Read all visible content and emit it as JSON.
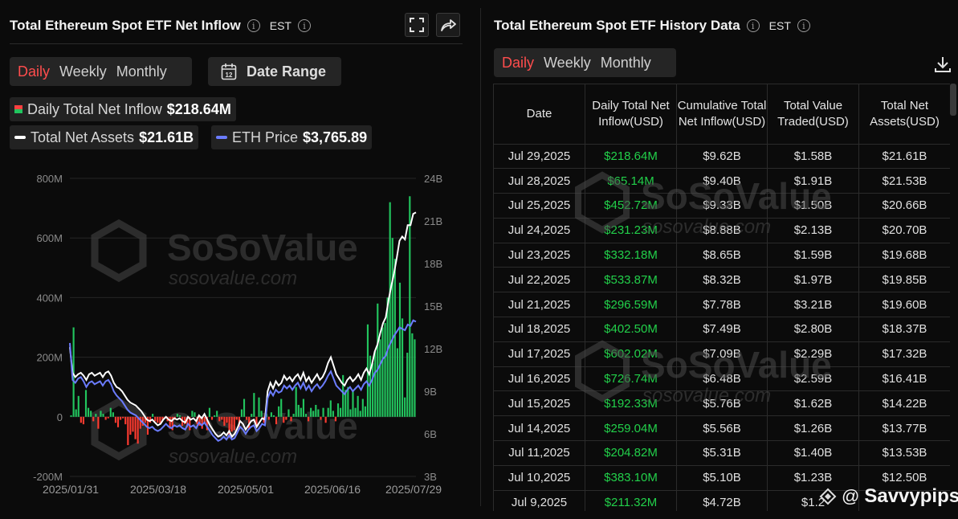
{
  "left_panel": {
    "title": "Total Ethereum Spot ETF Net Inflow",
    "timezone": "EST",
    "tabs": [
      "Daily",
      "Weekly",
      "Monthly"
    ],
    "active_tab": "Daily",
    "date_range_label": "Date Range",
    "legend": {
      "inflow_label": "Daily Total Net Inflow",
      "inflow_value": "$218.64M",
      "assets_label": "Total Net Assets",
      "assets_value": "$21.61B",
      "eth_label": "ETH Price",
      "eth_value": "$3,765.89"
    }
  },
  "right_panel": {
    "title": "Total Ethereum Spot ETF History Data",
    "timezone": "EST",
    "tabs": [
      "Daily",
      "Weekly",
      "Monthly"
    ],
    "active_tab": "Daily",
    "columns": [
      "Date",
      "Daily Total Net Inflow(USD)",
      "Cumulative Total Net Inflow(USD)",
      "Total Value Traded(USD)",
      "Total Net Assets(USD)"
    ],
    "rows": [
      [
        "Jul 29,2025",
        "$218.64M",
        "$9.62B",
        "$1.58B",
        "$21.61B"
      ],
      [
        "Jul 28,2025",
        "$65.14M",
        "$9.40B",
        "$1.91B",
        "$21.53B"
      ],
      [
        "Jul 25,2025",
        "$452.72M",
        "$9.33B",
        "$1.50B",
        "$20.66B"
      ],
      [
        "Jul 24,2025",
        "$231.23M",
        "$8.88B",
        "$2.13B",
        "$20.70B"
      ],
      [
        "Jul 23,2025",
        "$332.18M",
        "$8.65B",
        "$1.59B",
        "$19.68B"
      ],
      [
        "Jul 22,2025",
        "$533.87M",
        "$8.32B",
        "$1.97B",
        "$19.85B"
      ],
      [
        "Jul 21,2025",
        "$296.59M",
        "$7.78B",
        "$3.21B",
        "$19.60B"
      ],
      [
        "Jul 18,2025",
        "$402.50M",
        "$7.49B",
        "$2.80B",
        "$18.37B"
      ],
      [
        "Jul 17,2025",
        "$602.02M",
        "$7.09B",
        "$2.29B",
        "$17.32B"
      ],
      [
        "Jul 16,2025",
        "$726.74M",
        "$6.48B",
        "$2.59B",
        "$16.41B"
      ],
      [
        "Jul 15,2025",
        "$192.33M",
        "$5.76B",
        "$1.62B",
        "$14.22B"
      ],
      [
        "Jul 14,2025",
        "$259.04M",
        "$5.56B",
        "$1.26B",
        "$13.77B"
      ],
      [
        "Jul 11,2025",
        "$204.82M",
        "$5.31B",
        "$1.40B",
        "$13.53B"
      ],
      [
        "Jul 10,2025",
        "$383.10M",
        "$5.10B",
        "$1.23B",
        "$12.50B"
      ],
      [
        "Jul 9,2025",
        "$211.32M",
        "$4.72B",
        "$1.2",
        ""
      ]
    ]
  },
  "watermark": {
    "brand": "SoSoValue",
    "url": "sosovalue.com"
  },
  "footer_watermark": {
    "at": "@",
    "handle": "Savvypips"
  },
  "colors": {
    "positive": "#22c55e",
    "negative": "#ff3b30",
    "assets_line": "#ffffff",
    "eth_line": "#6b7cff",
    "active_tab": "#ff4d4d"
  },
  "chart_data": {
    "type": "bar",
    "x_tick_labels": [
      "2025/01/31",
      "2025/03/18",
      "2025/05/01",
      "2025/06/16",
      "2025/07/29"
    ],
    "y_left_ticks": [
      "800M",
      "600M",
      "400M",
      "200M",
      "0",
      "-200M"
    ],
    "y_right_ticks": [
      "24B",
      "21B",
      "18B",
      "15B",
      "12B",
      "9B",
      "6B",
      "3B"
    ],
    "ylim_left": [
      -200,
      800
    ],
    "ylim_right": [
      3,
      24
    ],
    "unit_left": "M USD",
    "unit_right": "B USD",
    "series": [
      {
        "name": "Daily Total Net Inflow",
        "type": "bar",
        "values": [
          5,
          300,
          25,
          70,
          -20,
          -25,
          90,
          30,
          20,
          -15,
          10,
          -40,
          20,
          10,
          -10,
          -5,
          30,
          15,
          -20,
          -35,
          -10,
          -5,
          -25,
          -95,
          -60,
          -50,
          -75,
          -90,
          -40,
          -30,
          -20,
          -60,
          -20,
          10,
          -15,
          -20,
          -25,
          -10,
          -5,
          -15,
          -40,
          -45,
          -10,
          10,
          5,
          -30,
          -25,
          -35,
          -45,
          20,
          15,
          -25,
          -30,
          -40,
          -20,
          -45,
          30,
          -10,
          5,
          20,
          -15,
          -10,
          -30,
          -20,
          -70,
          -50,
          -45,
          -10,
          -35,
          25,
          60,
          -10,
          -40,
          10,
          80,
          -30,
          65,
          20,
          -20,
          10,
          -10,
          15,
          5,
          -25,
          35,
          60,
          -20,
          -10,
          25,
          -15,
          10,
          100,
          40,
          30,
          60,
          10,
          -15,
          30,
          20,
          40,
          25,
          -10,
          30,
          -20,
          30,
          55,
          20,
          -15,
          45,
          30,
          140,
          90,
          100,
          25,
          90,
          30,
          70,
          20,
          60,
          35,
          310,
          205,
          180,
          220,
          380,
          260,
          300,
          315,
          400,
          720,
          600,
          530,
          230,
          450,
          330,
          65,
          215,
          740,
          280,
          260
        ],
        "color_positive": "#22c55e",
        "color_negative": "#ff3b30"
      },
      {
        "name": "Total Net Assets",
        "type": "line",
        "axis": "right",
        "values": [
          12.1,
          10.3,
          10.0,
          10.2,
          10.3,
          10.1,
          9.8,
          10.2,
          10.3,
          10.1,
          10.2,
          10.3,
          10.0,
          10.3,
          10.4,
          10.1,
          9.6,
          9.3,
          9.2,
          9.0,
          8.7,
          8.4,
          8.2,
          8.1,
          8.0,
          7.8,
          7.6,
          7.3,
          7.0,
          6.9,
          7.0,
          6.8,
          6.6,
          6.7,
          7.0,
          7.2,
          7.0,
          6.9,
          7.1,
          7.0,
          7.1,
          6.9,
          6.8,
          7.2,
          7.0,
          7.1,
          6.9,
          7.3,
          7.1,
          7.4,
          7.0,
          6.6,
          6.3,
          6.0,
          5.8,
          5.9,
          6.1,
          5.9,
          6.2,
          5.8,
          6.0,
          6.4,
          6.9,
          6.7,
          6.3,
          6.6,
          6.9,
          7.0,
          6.5,
          6.8,
          7.1,
          7.0,
          9.0,
          9.6,
          9.2,
          9.7,
          9.4,
          9.6,
          10.1,
          9.8,
          10.0,
          9.7,
          10.0,
          10.2,
          9.8,
          10.3,
          9.7,
          10.0,
          9.6,
          9.9,
          10.2,
          9.8,
          10.0,
          10.4,
          11.0,
          11.4,
          10.8,
          10.2,
          9.9,
          9.6,
          9.4,
          9.8,
          10.0,
          9.7,
          9.9,
          10.2,
          9.8,
          10.3,
          10.6,
          10.2,
          10.9,
          11.8,
          12.3,
          13.1,
          13.8,
          14.2,
          15.4,
          16.4,
          17.3,
          18.4,
          19.6,
          19.9,
          19.7,
          20.7,
          20.7,
          21.5,
          21.6
        ]
      },
      {
        "name": "ETH Price",
        "type": "line",
        "axis": "right",
        "values": [
          12.4,
          9.8,
          9.6,
          9.9,
          10.0,
          9.7,
          9.3,
          9.6,
          9.7,
          9.5,
          9.6,
          9.7,
          9.4,
          9.7,
          9.8,
          9.5,
          9.0,
          8.7,
          8.5,
          8.3,
          8.0,
          7.7,
          7.5,
          7.4,
          7.3,
          7.1,
          6.9,
          6.7,
          6.5,
          6.4,
          6.5,
          6.3,
          6.2,
          6.3,
          6.5,
          6.7,
          6.5,
          6.4,
          6.6,
          6.5,
          6.6,
          6.4,
          6.3,
          6.7,
          6.5,
          6.6,
          6.4,
          6.8,
          6.6,
          6.8,
          6.5,
          6.2,
          5.9,
          5.7,
          5.5,
          5.6,
          5.8,
          5.6,
          5.9,
          5.6,
          5.7,
          6.1,
          6.5,
          6.3,
          6.0,
          6.3,
          6.5,
          6.6,
          6.2,
          6.4,
          6.7,
          6.6,
          8.5,
          9.0,
          8.7,
          9.1,
          8.9,
          9.0,
          9.4,
          9.2,
          9.4,
          9.1,
          9.4,
          9.6,
          9.2,
          9.6,
          9.1,
          9.4,
          9.0,
          9.3,
          9.5,
          9.2,
          9.4,
          9.7,
          10.1,
          10.4,
          9.9,
          9.4,
          9.2,
          9.0,
          8.8,
          9.1,
          9.3,
          9.0,
          9.2,
          9.4,
          9.1,
          9.5,
          9.7,
          9.4,
          9.8,
          10.3,
          10.5,
          10.9,
          11.3,
          11.5,
          12.1,
          12.5,
          12.9,
          13.2,
          13.5,
          13.4,
          13.3,
          13.7,
          13.6,
          14.0,
          13.9
        ]
      }
    ]
  }
}
